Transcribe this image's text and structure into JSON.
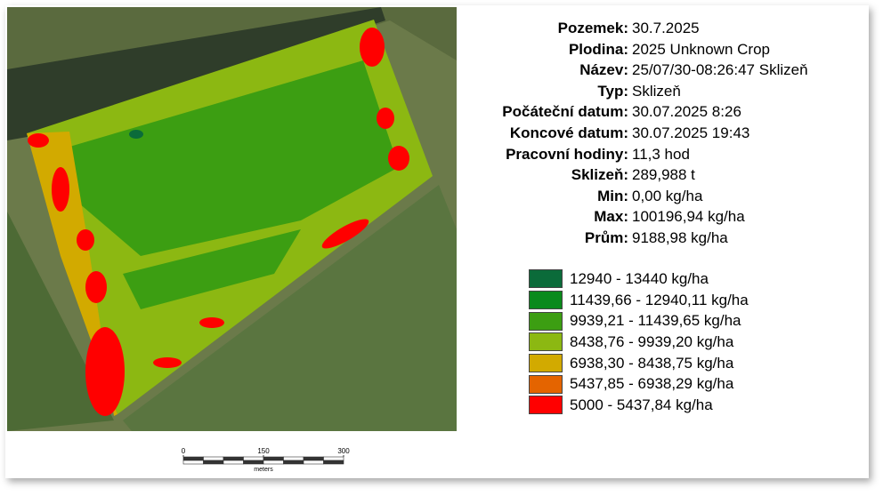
{
  "info": [
    {
      "label": "Pozemek:",
      "value": "30.7.2025"
    },
    {
      "label": "Plodina:",
      "value": "2025 Unknown Crop"
    },
    {
      "label": "Název:",
      "value": "25/07/30-08:26:47 Sklizeň"
    },
    {
      "label": "Typ:",
      "value": "Sklizeň"
    },
    {
      "label": "Počáteční datum:",
      "value": "30.07.2025 8:26"
    },
    {
      "label": "Koncové datum:",
      "value": "30.07.2025 19:43"
    },
    {
      "label": "Pracovní hodiny:",
      "value": "11,3 hod"
    },
    {
      "label": "Sklizeň:",
      "value": "289,988 t"
    },
    {
      "label": "Min:",
      "value": "0,00 kg/ha"
    },
    {
      "label": "Max:",
      "value": "100196,94 kg/ha"
    },
    {
      "label": "Prům:",
      "value": "9188,98 kg/ha"
    }
  ],
  "legend": [
    {
      "label": "12940 - 13440 kg/ha",
      "color": "#0b6b3a"
    },
    {
      "label": "11439,66 - 12940,11 kg/ha",
      "color": "#0a8a1c"
    },
    {
      "label": "9939,21 - 11439,65 kg/ha",
      "color": "#3c9e12"
    },
    {
      "label": "8438,76 - 9939,20 kg/ha",
      "color": "#8cb812"
    },
    {
      "label": "6938,30 - 8438,75 kg/ha",
      "color": "#d2aa00"
    },
    {
      "label": "5437,85 - 6938,29 kg/ha",
      "color": "#e46400"
    },
    {
      "label": "5000 - 5437,84 kg/ha",
      "color": "#ff0000"
    }
  ],
  "scale": {
    "ticks": [
      0,
      150,
      300
    ],
    "unit": "meters"
  }
}
